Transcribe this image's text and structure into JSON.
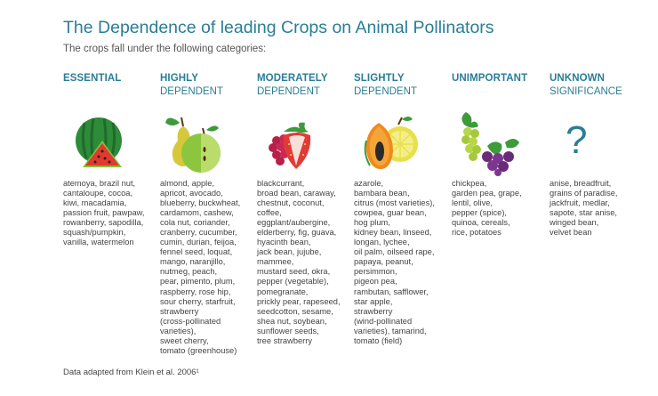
{
  "title": "The Dependence of leading Crops on Animal Pollinators",
  "subtitle": "The crops fall under the following categories:",
  "categories": [
    {
      "head1": "ESSENTIAL",
      "head2": "",
      "icon": "watermelon-icon",
      "crops": [
        "atemoya, brazil nut,",
        "cantaloupe, cocoa,",
        "kiwi, macadamia,",
        "passion fruit, pawpaw,",
        "rowanberry, sapodilla,",
        "squash/pumpkin,",
        "vanilla, watermelon"
      ]
    },
    {
      "head1": "HIGHLY",
      "head2": "DEPENDENT",
      "icon": "pear-apple-icon",
      "crops": [
        "almond, apple,",
        "apricot, avocado,",
        "blueberry, buckwheat,",
        "cardamom, cashew,",
        "cola nut, coriander,",
        "cranberry, cucumber,",
        "cumin, durian, feijoa,",
        "fennel seed, loquat,",
        "mango, naranjillo,",
        "nutmeg, peach,",
        "pear, pimento, plum,",
        "raspberry, rose hip,",
        "sour cherry, starfruit,",
        "strawberry",
        "(cross-pollinated",
        "varieties),",
        "sweet cherry,",
        "tomato (greenhouse)"
      ]
    },
    {
      "head1": "MODERATELY",
      "head2": "DEPENDENT",
      "icon": "strawberry-raspberry-icon",
      "crops": [
        "blackcurrant,",
        "broad bean, caraway,",
        "chestnut, coconut,",
        "coffee,",
        "eggplant/aubergine,",
        "elderberry, fig, guava,",
        "hyacinth bean,",
        "jack bean, jujube,",
        "mammee,",
        "mustard seed, okra,",
        "pepper (vegetable),",
        "pomegranate,",
        "prickly pear, rapeseed,",
        "seedcotton, sesame,",
        "shea nut, soybean,",
        "sunflower seeds,",
        "tree strawberry"
      ]
    },
    {
      "head1": "SLIGHTLY",
      "head2": "DEPENDENT",
      "icon": "papaya-lemon-icon",
      "crops": [
        "azarole,",
        "bambara bean,",
        "citrus (most varieties),",
        "cowpea, guar bean,",
        "hog plum,",
        "kidney bean, linseed,",
        "longan, lychee,",
        "oil palm, oilseed rape,",
        "papaya, peanut,",
        "persimmon,",
        "pigeon pea,",
        "rambutan, safflower,",
        "star apple,",
        "strawberry",
        "(wind-pollinated",
        "varieties), tamarind,",
        "tomato (field)"
      ]
    },
    {
      "head1": "UNIMPORTANT",
      "head2": "",
      "icon": "grapes-icon",
      "crops": [
        "chickpea,",
        "garden pea, grape,",
        "lentil, olive,",
        "pepper (spice),",
        "quinoa, cereals,",
        "rice, potatoes"
      ]
    },
    {
      "head1": "UNKNOWN",
      "head2": "SIGNIFICANCE",
      "icon": "question-mark-icon",
      "glyph": "?",
      "crops": [
        "anise, breadfruit,",
        "grains of paradise,",
        "jackfruit, medlar,",
        "sapote, star anise,",
        "winged bean,",
        "velvet bean"
      ]
    }
  ],
  "footnote": "Data adapted from Klein et al. 2006¹",
  "colors": {
    "accent": "#2a7d96",
    "text": "#444444"
  }
}
